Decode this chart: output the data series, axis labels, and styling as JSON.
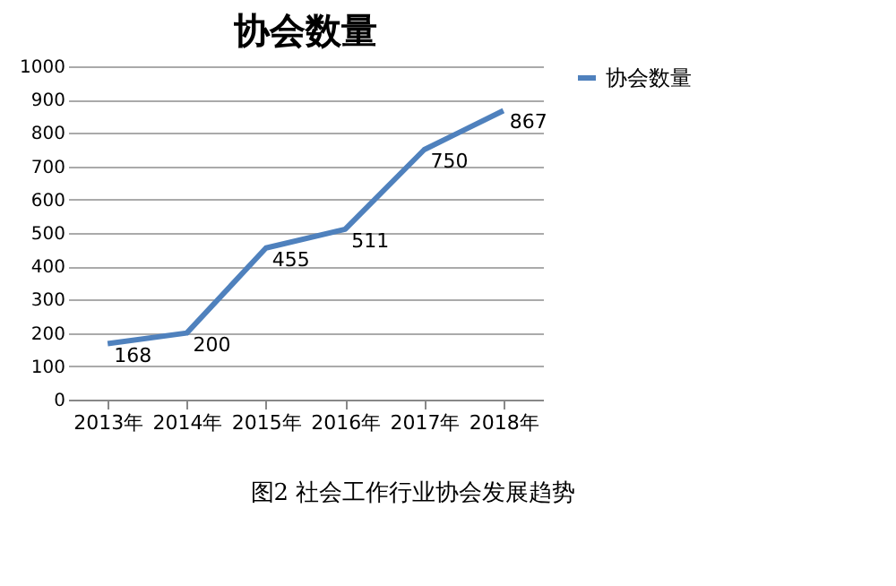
{
  "chart_data": {
    "type": "line",
    "title": "协会数量",
    "categories": [
      "2013年",
      "2014年",
      "2015年",
      "2016年",
      "2017年",
      "2018年"
    ],
    "series": [
      {
        "name": "协会数量",
        "color": "#4f81bd",
        "values": [
          168,
          200,
          455,
          511,
          750,
          867
        ]
      }
    ],
    "ylim": [
      0,
      1000
    ],
    "yticks": [
      0,
      100,
      200,
      300,
      400,
      500,
      600,
      700,
      800,
      900,
      1000
    ],
    "grid": "y",
    "legend": "right",
    "data_labels": true,
    "marker": "none",
    "line_style": "solid",
    "annotations": [
      "图2 社会工作行业协会发展趋势"
    ]
  }
}
